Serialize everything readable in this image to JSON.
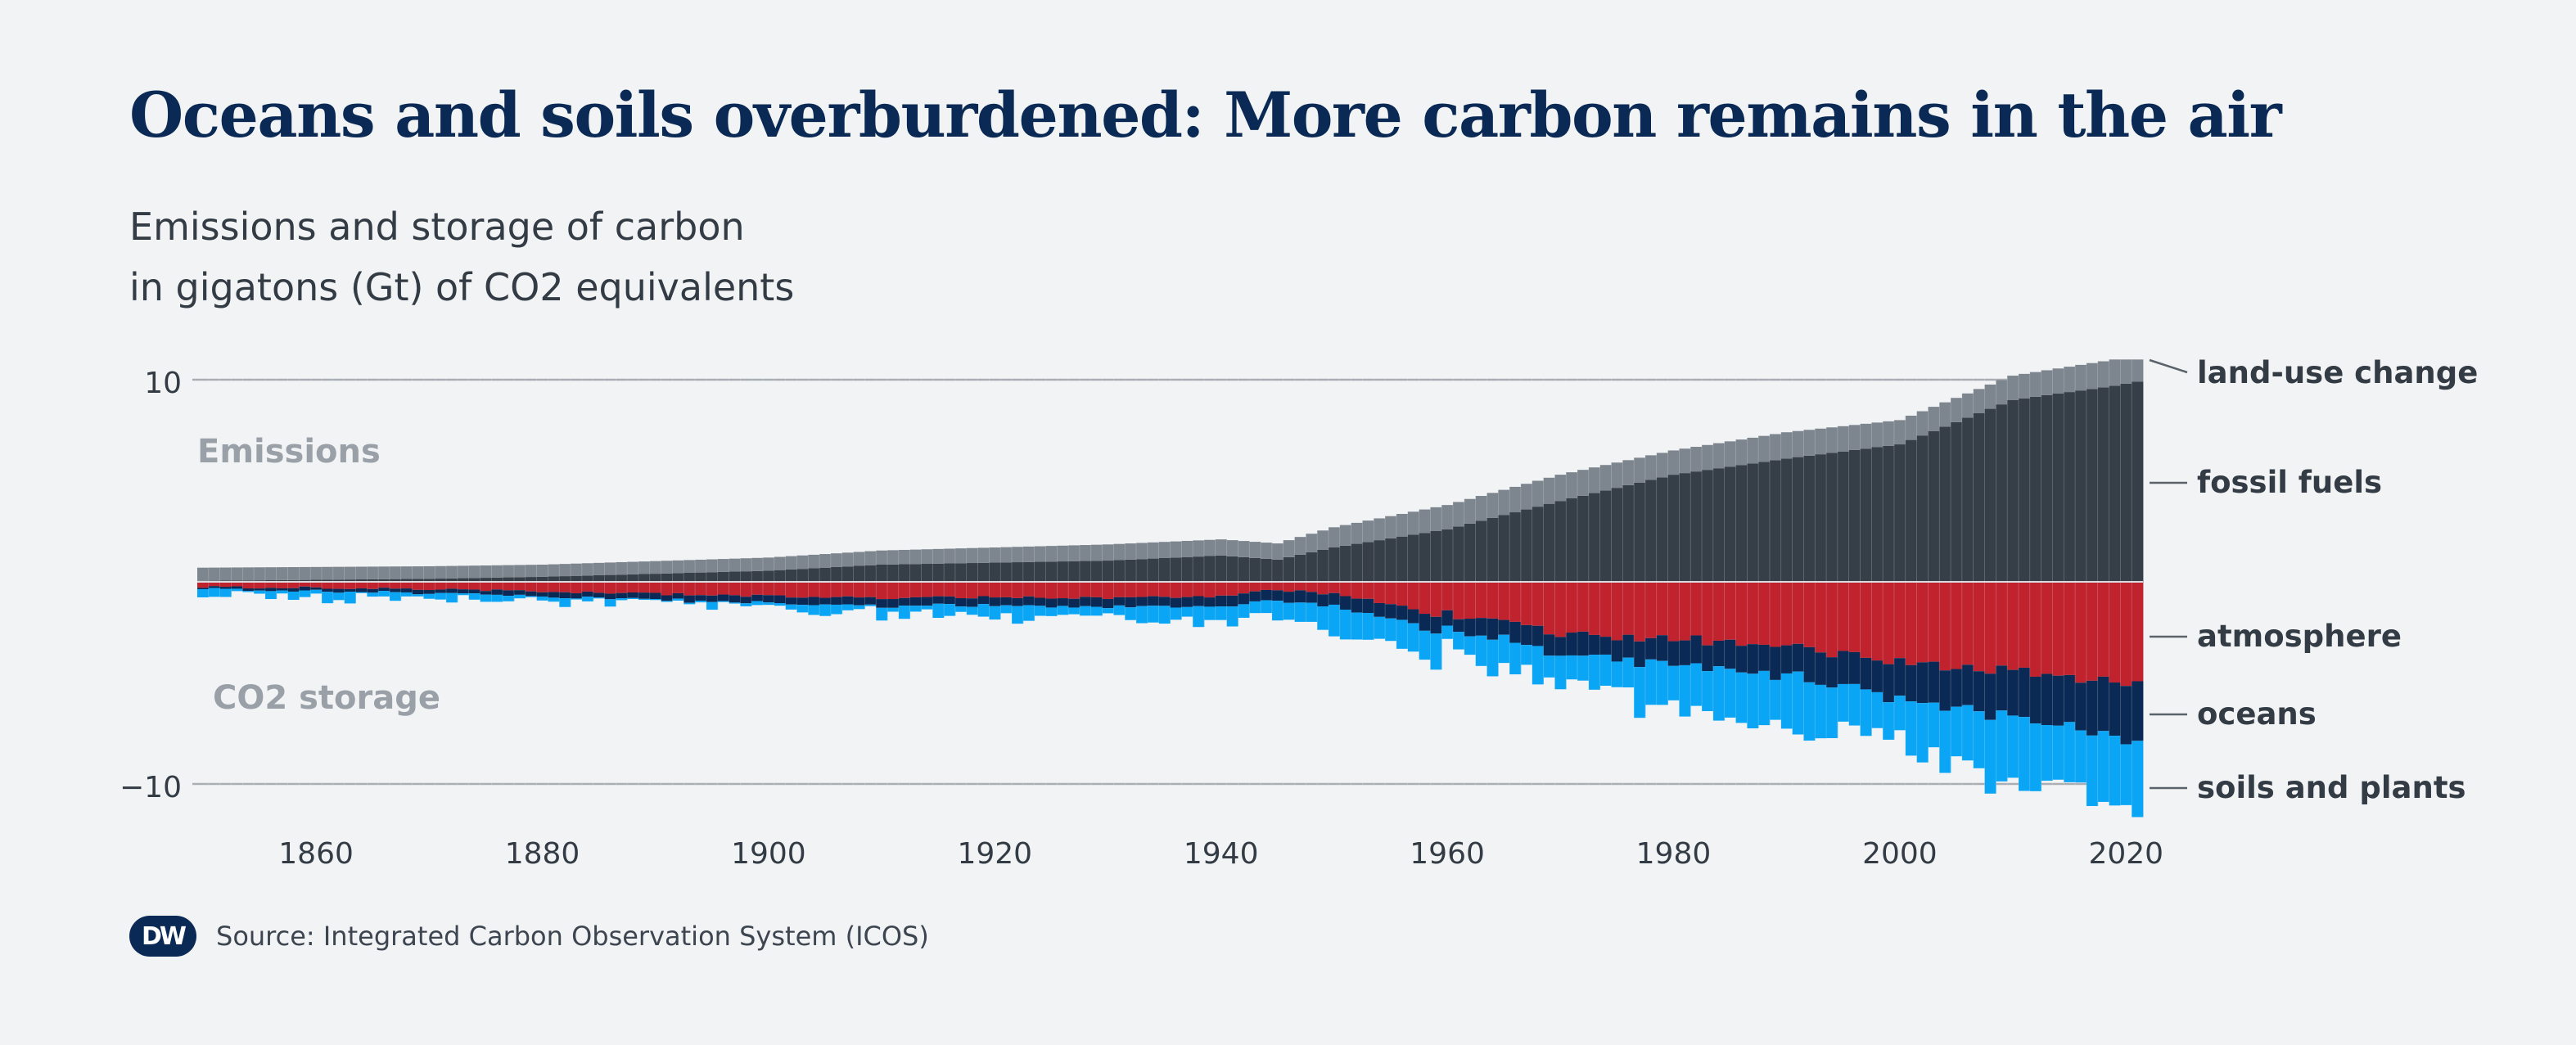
{
  "header": {
    "title": "Oceans and soils overburdened: More carbon remains in the air",
    "subtitle_line1": "Emissions and storage of carbon",
    "subtitle_line2": "in gigatons (Gt) of CO2 equivalents"
  },
  "footer": {
    "logo_text": "DW",
    "source": "Source: Integrated Carbon Observation System (ICOS)"
  },
  "colors": {
    "land_use_change": "#7d858e",
    "fossil_fuels": "#363e47",
    "atmosphere": "#c0222e",
    "oceans": "#0a2a55",
    "soils_and_plants": "#0aa5f5",
    "grid": "#a9aeb4",
    "annotation": "#9aa0a7",
    "label": "#333b45"
  },
  "chart_data": {
    "type": "bar",
    "stacked": true,
    "xlim": [
      1850,
      2021
    ],
    "ylim": [
      -12,
      12
    ],
    "y_ticks": [
      {
        "value": 10,
        "label": "10"
      },
      {
        "value": -10,
        "label": "−10"
      }
    ],
    "x_ticks": [
      1860,
      1880,
      1900,
      1920,
      1940,
      1960,
      1980,
      2000,
      2020
    ],
    "annotations": {
      "emissions": "Emissions",
      "storage": "CO2 storage"
    },
    "anchors": [
      {
        "year": 1850,
        "fossil": 0.05,
        "luc": 0.65,
        "atm": 0.25,
        "ocean": 0.1,
        "land": 0.35
      },
      {
        "year": 1870,
        "fossil": 0.15,
        "luc": 0.62,
        "atm": 0.35,
        "ocean": 0.2,
        "land": 0.25
      },
      {
        "year": 1880,
        "fossil": 0.25,
        "luc": 0.6,
        "atm": 0.5,
        "ocean": 0.25,
        "land": 0.15
      },
      {
        "year": 1900,
        "fossil": 0.55,
        "luc": 0.65,
        "atm": 0.7,
        "ocean": 0.35,
        "land": 0.2
      },
      {
        "year": 1910,
        "fossil": 0.85,
        "luc": 0.7,
        "atm": 0.8,
        "ocean": 0.4,
        "land": 0.35
      },
      {
        "year": 1920,
        "fossil": 0.95,
        "luc": 0.75,
        "atm": 0.75,
        "ocean": 0.4,
        "land": 0.6
      },
      {
        "year": 1930,
        "fossil": 1.05,
        "luc": 0.8,
        "atm": 0.8,
        "ocean": 0.45,
        "land": 0.55
      },
      {
        "year": 1940,
        "fossil": 1.3,
        "luc": 0.8,
        "atm": 0.7,
        "ocean": 0.5,
        "land": 0.8
      },
      {
        "year": 1945,
        "fossil": 1.1,
        "luc": 0.8,
        "atm": 0.4,
        "ocean": 0.55,
        "land": 0.9
      },
      {
        "year": 1950,
        "fossil": 1.7,
        "luc": 1.0,
        "atm": 0.6,
        "ocean": 0.6,
        "land": 1.4
      },
      {
        "year": 1960,
        "fossil": 2.6,
        "luc": 1.2,
        "atm": 1.6,
        "ocean": 0.8,
        "land": 1.2
      },
      {
        "year": 1970,
        "fossil": 4.0,
        "luc": 1.3,
        "atm": 2.6,
        "ocean": 1.0,
        "land": 1.6
      },
      {
        "year": 1980,
        "fossil": 5.3,
        "luc": 1.2,
        "atm": 2.8,
        "ocean": 1.2,
        "land": 2.1
      },
      {
        "year": 1990,
        "fossil": 6.1,
        "luc": 1.3,
        "atm": 3.2,
        "ocean": 1.5,
        "land": 2.6
      },
      {
        "year": 2000,
        "fossil": 6.8,
        "luc": 1.2,
        "atm": 4.0,
        "ocean": 1.8,
        "land": 2.3
      },
      {
        "year": 2010,
        "fossil": 9.0,
        "luc": 1.2,
        "atm": 4.4,
        "ocean": 2.3,
        "land": 3.3
      },
      {
        "year": 2019,
        "fossil": 9.7,
        "luc": 1.3,
        "atm": 5.0,
        "ocean": 2.6,
        "land": 3.0
      },
      {
        "year": 2021,
        "fossil": 9.9,
        "luc": 1.1,
        "atm": 5.1,
        "ocean": 2.8,
        "land": 3.2
      }
    ],
    "series": [
      {
        "key": "luc",
        "name": "land-use change",
        "side": "positive"
      },
      {
        "key": "fossil",
        "name": "fossil fuels",
        "side": "positive"
      },
      {
        "key": "atm",
        "name": "atmosphere",
        "side": "negative"
      },
      {
        "key": "ocean",
        "name": "oceans",
        "side": "negative"
      },
      {
        "key": "land",
        "name": "soils and plants",
        "side": "negative"
      }
    ]
  }
}
